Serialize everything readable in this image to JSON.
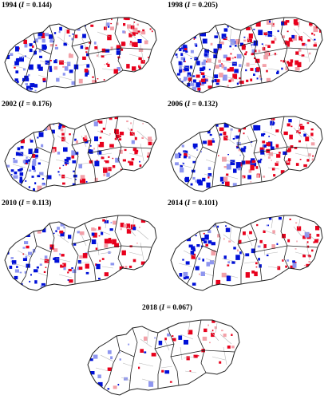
{
  "panels": [
    {
      "id": "p1994",
      "year": "1994",
      "stat_label": "I",
      "stat_value": "0.144",
      "west": 0.9,
      "east": 0.7,
      "intensity": 0.85
    },
    {
      "id": "p1998",
      "year": "1998",
      "stat_label": "I",
      "stat_value": "0.205",
      "west": 0.95,
      "east": 0.95,
      "intensity": 1.0
    },
    {
      "id": "p2002",
      "year": "2002",
      "stat_label": "I",
      "stat_value": "0.176",
      "west": 0.85,
      "east": 0.8,
      "intensity": 0.9
    },
    {
      "id": "p2006",
      "year": "2006",
      "stat_label": "I",
      "stat_value": "0.132",
      "west": 0.75,
      "east": 0.7,
      "intensity": 0.75
    },
    {
      "id": "p2010",
      "year": "2010",
      "stat_label": "I",
      "stat_value": "0.113",
      "west": 0.6,
      "east": 0.75,
      "intensity": 0.7
    },
    {
      "id": "p2014",
      "year": "2014",
      "stat_label": "I",
      "stat_value": "0.101",
      "west": 0.65,
      "east": 0.6,
      "intensity": 0.65
    },
    {
      "id": "p2018",
      "year": "2018",
      "stat_label": "I",
      "stat_value": "0.067",
      "west": 0.45,
      "east": 0.45,
      "intensity": 0.5
    }
  ],
  "colors": {
    "high": "#e8001c",
    "high_light": "#f3a0a8",
    "low": "#0010d8",
    "low_light": "#8e96f0",
    "border_region": "#222222",
    "border_district": "#b8b8b8"
  }
}
